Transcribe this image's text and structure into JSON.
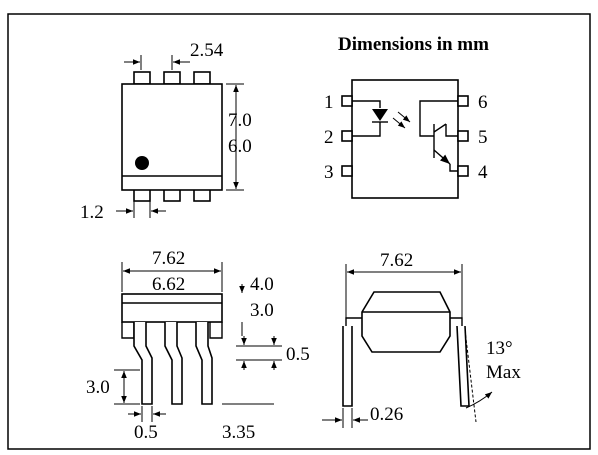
{
  "title": "Dimensions in mm",
  "top_view": {
    "pitch": "2.54",
    "height_max": "7.0",
    "height_min": "6.0",
    "pin_width": "1.2"
  },
  "pinout": {
    "pins_left": [
      "1",
      "2",
      "3"
    ],
    "pins_right": [
      "6",
      "5",
      "4"
    ]
  },
  "side_view": {
    "width_outer": "7.62",
    "width_inner": "6.62",
    "body_h_max": "4.0",
    "body_h_min": "3.0",
    "lead_gap": "0.5",
    "lead_length": "3.0",
    "lead_width": "0.5",
    "seating": "3.35"
  },
  "end_view": {
    "width": "7.62",
    "lead_thickness": "0.26",
    "angle": "13°",
    "angle_note": "Max"
  }
}
